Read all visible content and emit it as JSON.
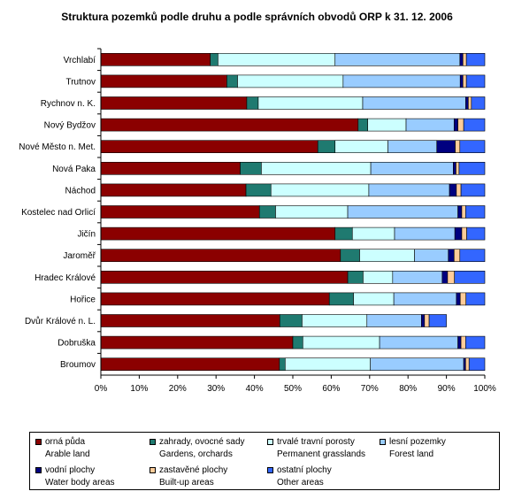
{
  "chart_data": {
    "type": "bar",
    "orientation": "horizontal",
    "stacked": "percent",
    "title": "Struktura pozemků podle druhu a podle správních obvodů ORP k 31. 12. 2006",
    "xlim": [
      0,
      100
    ],
    "x_ticks": [
      "0%",
      "10%",
      "20%",
      "30%",
      "40%",
      "50%",
      "60%",
      "70%",
      "80%",
      "90%",
      "100%"
    ],
    "grid": false,
    "legend_position": "bottom",
    "categories": [
      "Vrchlabí",
      "Trutnov",
      "Rychnov n. K.",
      "Nový Bydžov",
      "Nové Město n. Met.",
      "Nová Paka",
      "Náchod",
      "Kostelec nad Orlicí",
      "Jičín",
      "Jaroměř",
      "Hradec Králové",
      "Hořice",
      "Dvůr Králové n. L.",
      "Dobruška",
      "Broumov"
    ],
    "series": [
      {
        "name": "orná půda",
        "name_en": "Arable land",
        "color": "#8b0000",
        "values": [
          28.5,
          32.8,
          38.0,
          67.0,
          56.5,
          36.3,
          37.8,
          41.3,
          61.0,
          62.4,
          64.3,
          59.5,
          46.6,
          50.0,
          46.5
        ]
      },
      {
        "name": "zahrady, ovocné sady",
        "name_en": "Gardens, orchards",
        "color": "#1f7a70",
        "values": [
          2.0,
          2.8,
          3.0,
          2.5,
          4.5,
          5.5,
          6.5,
          4.2,
          4.5,
          5.0,
          4.0,
          6.3,
          5.8,
          2.6,
          1.5
        ]
      },
      {
        "name": "trvalé travní porosty",
        "name_en": "Permanent grasslands",
        "color": "#ccffff",
        "values": [
          30.5,
          27.5,
          27.2,
          10.0,
          13.8,
          28.5,
          25.5,
          18.8,
          11.0,
          14.3,
          7.7,
          10.5,
          16.9,
          20.0,
          22.2
        ]
      },
      {
        "name": "lesní pozemky",
        "name_en": "Forest land",
        "color": "#99ccff",
        "values": [
          32.5,
          30.5,
          26.8,
          12.5,
          12.7,
          21.5,
          21.0,
          28.7,
          15.7,
          8.8,
          12.9,
          16.3,
          14.2,
          20.4,
          24.3
        ]
      },
      {
        "name": "vodní plochy",
        "name_en": "Water body areas",
        "color": "#000080",
        "values": [
          0.8,
          0.7,
          0.7,
          1.0,
          4.8,
          0.7,
          1.8,
          1.0,
          1.8,
          1.5,
          1.4,
          1.0,
          0.8,
          0.8,
          0.5
        ]
      },
      {
        "name": "zastavěné plochy",
        "name_en": "Built-up areas",
        "color": "#ffcc99",
        "values": [
          0.9,
          0.9,
          0.8,
          1.5,
          1.2,
          0.8,
          1.2,
          1.0,
          1.3,
          1.5,
          1.8,
          1.5,
          1.2,
          1.2,
          0.9
        ]
      },
      {
        "name": "ostatní plochy",
        "name_en": "Other areas",
        "color": "#3366ff",
        "values": [
          4.8,
          4.8,
          3.5,
          5.5,
          6.5,
          6.7,
          6.2,
          5.0,
          4.7,
          6.5,
          7.9,
          4.9,
          4.5,
          5.0,
          4.1
        ]
      }
    ]
  }
}
